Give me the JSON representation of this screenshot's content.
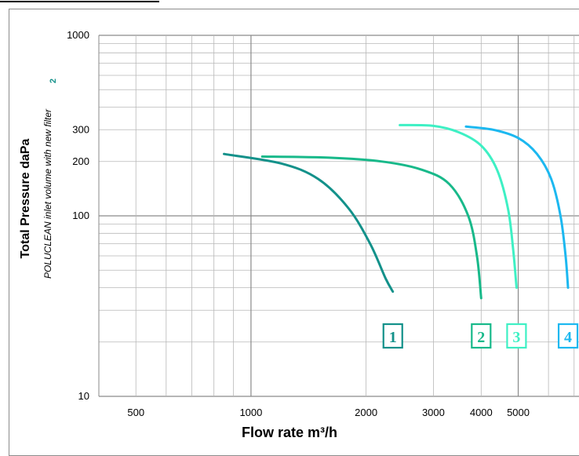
{
  "chart_data": {
    "type": "line",
    "title": "",
    "xlabel": "Flow rate m³/h",
    "ylabel": "Total Pressure daPa",
    "ylabel_sub": "POLUCLEAN inlet volume with new filter",
    "ylabel_sub_footnote": "2",
    "x_scale": "log",
    "y_scale": "log",
    "xlim": [
      400,
      8000
    ],
    "ylim": [
      10,
      1000
    ],
    "x_ticks": [
      {
        "value": 500,
        "label": "500"
      },
      {
        "value": 1000,
        "label": "1000"
      },
      {
        "value": 2000,
        "label": "2000"
      },
      {
        "value": 3000,
        "label": "3000"
      },
      {
        "value": 4000,
        "label": "4000"
      },
      {
        "value": 5000,
        "label": "5000"
      }
    ],
    "y_ticks": [
      {
        "value": 10,
        "label": "10"
      },
      {
        "value": 100,
        "label": "100"
      },
      {
        "value": 200,
        "label": "200"
      },
      {
        "value": 300,
        "label": "300"
      },
      {
        "value": 1000,
        "label": "1000"
      }
    ],
    "grid": true,
    "series": [
      {
        "name": "1",
        "color": "#13918a",
        "points": [
          [
            850,
            220
          ],
          [
            1200,
            195
          ],
          [
            1500,
            160
          ],
          [
            1800,
            110
          ],
          [
            2050,
            70
          ],
          [
            2250,
            45
          ],
          [
            2350,
            38
          ]
        ]
      },
      {
        "name": "2",
        "color": "#18b98a",
        "points": [
          [
            1070,
            213
          ],
          [
            1600,
            210
          ],
          [
            2200,
            200
          ],
          [
            2800,
            180
          ],
          [
            3300,
            150
          ],
          [
            3700,
            100
          ],
          [
            3900,
            60
          ],
          [
            4000,
            35
          ]
        ]
      },
      {
        "name": "3",
        "color": "#3ef0c4",
        "points": [
          [
            2450,
            318
          ],
          [
            3000,
            315
          ],
          [
            3500,
            290
          ],
          [
            4000,
            245
          ],
          [
            4400,
            180
          ],
          [
            4700,
            110
          ],
          [
            4850,
            65
          ],
          [
            4950,
            40
          ]
        ]
      },
      {
        "name": "4",
        "color": "#1cb8f0",
        "points": [
          [
            3650,
            312
          ],
          [
            4300,
            300
          ],
          [
            5000,
            270
          ],
          [
            5600,
            220
          ],
          [
            6100,
            160
          ],
          [
            6450,
            100
          ],
          [
            6650,
            60
          ],
          [
            6750,
            40
          ]
        ]
      }
    ]
  }
}
